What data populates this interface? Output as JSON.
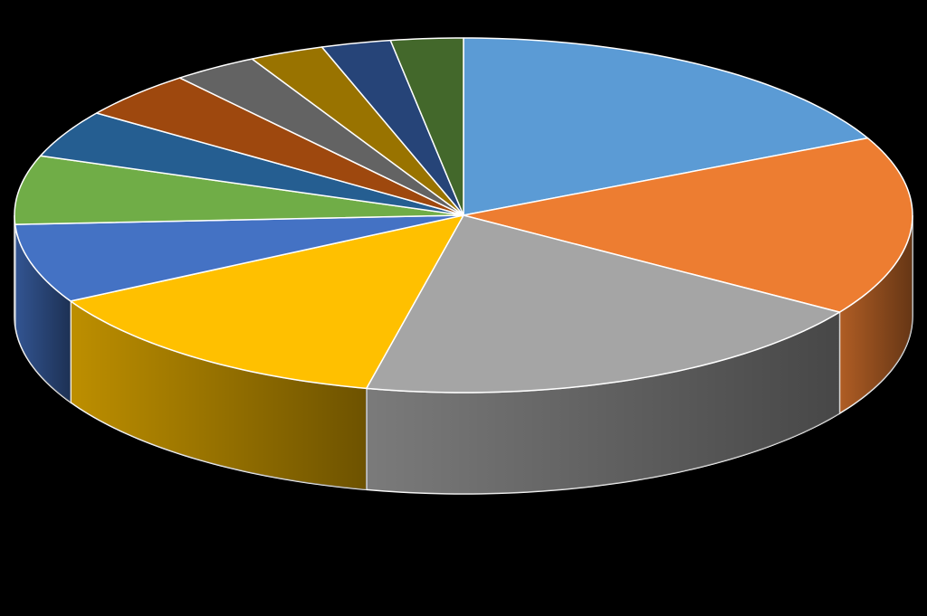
{
  "chart_data": {
    "type": "pie",
    "style": "3d",
    "background": "#000000",
    "title": "",
    "legend": "none",
    "slice_border_color": "#ffffff",
    "series": [
      {
        "value": 18.5,
        "color": "#5b9bd5"
      },
      {
        "value": 17.0,
        "color": "#ed7d31"
      },
      {
        "value": 20.0,
        "color": "#a5a5a5"
      },
      {
        "value": 14.0,
        "color": "#ffc000"
      },
      {
        "value": 7.5,
        "color": "#4472c4"
      },
      {
        "value": 6.5,
        "color": "#70ad47"
      },
      {
        "value": 4.5,
        "color": "#255e91"
      },
      {
        "value": 4.5,
        "color": "#9e480e"
      },
      {
        "value": 3.2,
        "color": "#636363"
      },
      {
        "value": 2.8,
        "color": "#997300"
      },
      {
        "value": 2.6,
        "color": "#264478"
      },
      {
        "value": 2.7,
        "color": "#43682b"
      }
    ]
  }
}
